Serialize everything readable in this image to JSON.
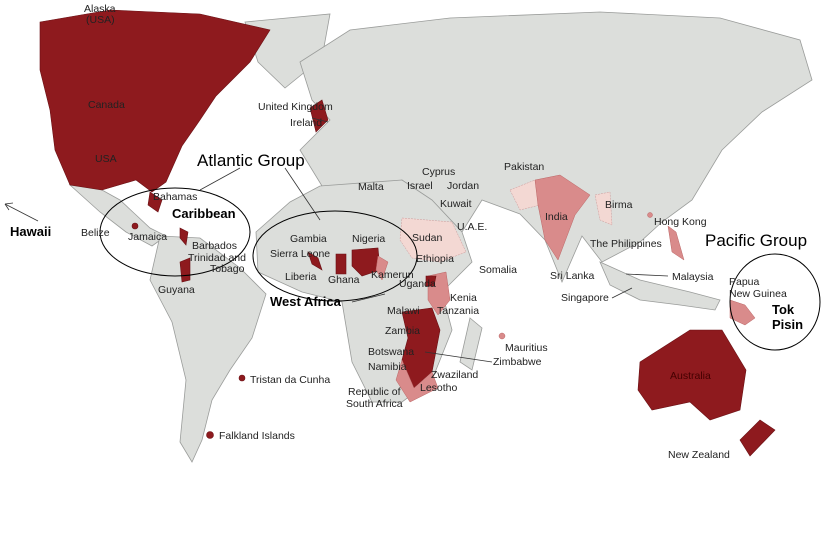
{
  "colors": {
    "land": "#dcdedb",
    "strong": "#8e1a1e",
    "medium": "#d98b8b",
    "light": "#f3d8d3",
    "background": "#ffffff"
  },
  "groups": {
    "atlantic": "Atlantic Group",
    "pacific": "Pacific Group",
    "caribbean": "Caribbean",
    "west_africa": "West Africa",
    "tok": "Tok",
    "pisin": "Pisin",
    "hawaii": "Hawaii"
  },
  "labels": {
    "alaska1": "Alaska",
    "alaska2": "(USA)",
    "canada": "Canada",
    "usa": "USA",
    "uk": "United Kingdom",
    "ireland": "Ireland",
    "bahamas": "Bahamas",
    "belize": "Belize",
    "jamaica": "Jamaica",
    "barbados": "Barbados",
    "trinidad1": "Trinidad and",
    "trinidad2": "Tobago",
    "guyana": "Guyana",
    "malta": "Malta",
    "cyprus": "Cyprus",
    "israel": "Israel",
    "jordan": "Jordan",
    "kuwait": "Kuwait",
    "uae": "U.A.E.",
    "pakistan": "Pakistan",
    "india": "India",
    "birma": "Birma",
    "hongkong": "Hong Kong",
    "philippines": "The Philippines",
    "srilanka": "Sri Lanka",
    "malaysia": "Malaysia",
    "singapore": "Singapore",
    "papua1": "Papua",
    "papua2": "New Guinea",
    "gambia": "Gambia",
    "nigeria": "Nigeria",
    "sierraleone": "Sierra Leone",
    "liberia": "Liberia",
    "ghana": "Ghana",
    "kamerun": "Kamerun",
    "uganda": "Uganda",
    "sudan": "Sudan",
    "ethiopia": "Ethiopia",
    "somalia": "Somalia",
    "kenia": "Kenia",
    "tanzania": "Tanzania",
    "malawi": "Malawi",
    "zambia": "Zambia",
    "botswana": "Botswana",
    "namibia": "Namibia",
    "zimbabwe": "Zimbabwe",
    "zwaziland": "Zwaziland",
    "lesotho": "Lesotho",
    "southafrica1": "Republic of",
    "southafrica2": "South Africa",
    "mauritius": "Mauritius",
    "tristan": "Tristan da Cunha",
    "falkland": "Falkland Islands",
    "australia": "Australia",
    "newzealand": "New Zealand"
  }
}
